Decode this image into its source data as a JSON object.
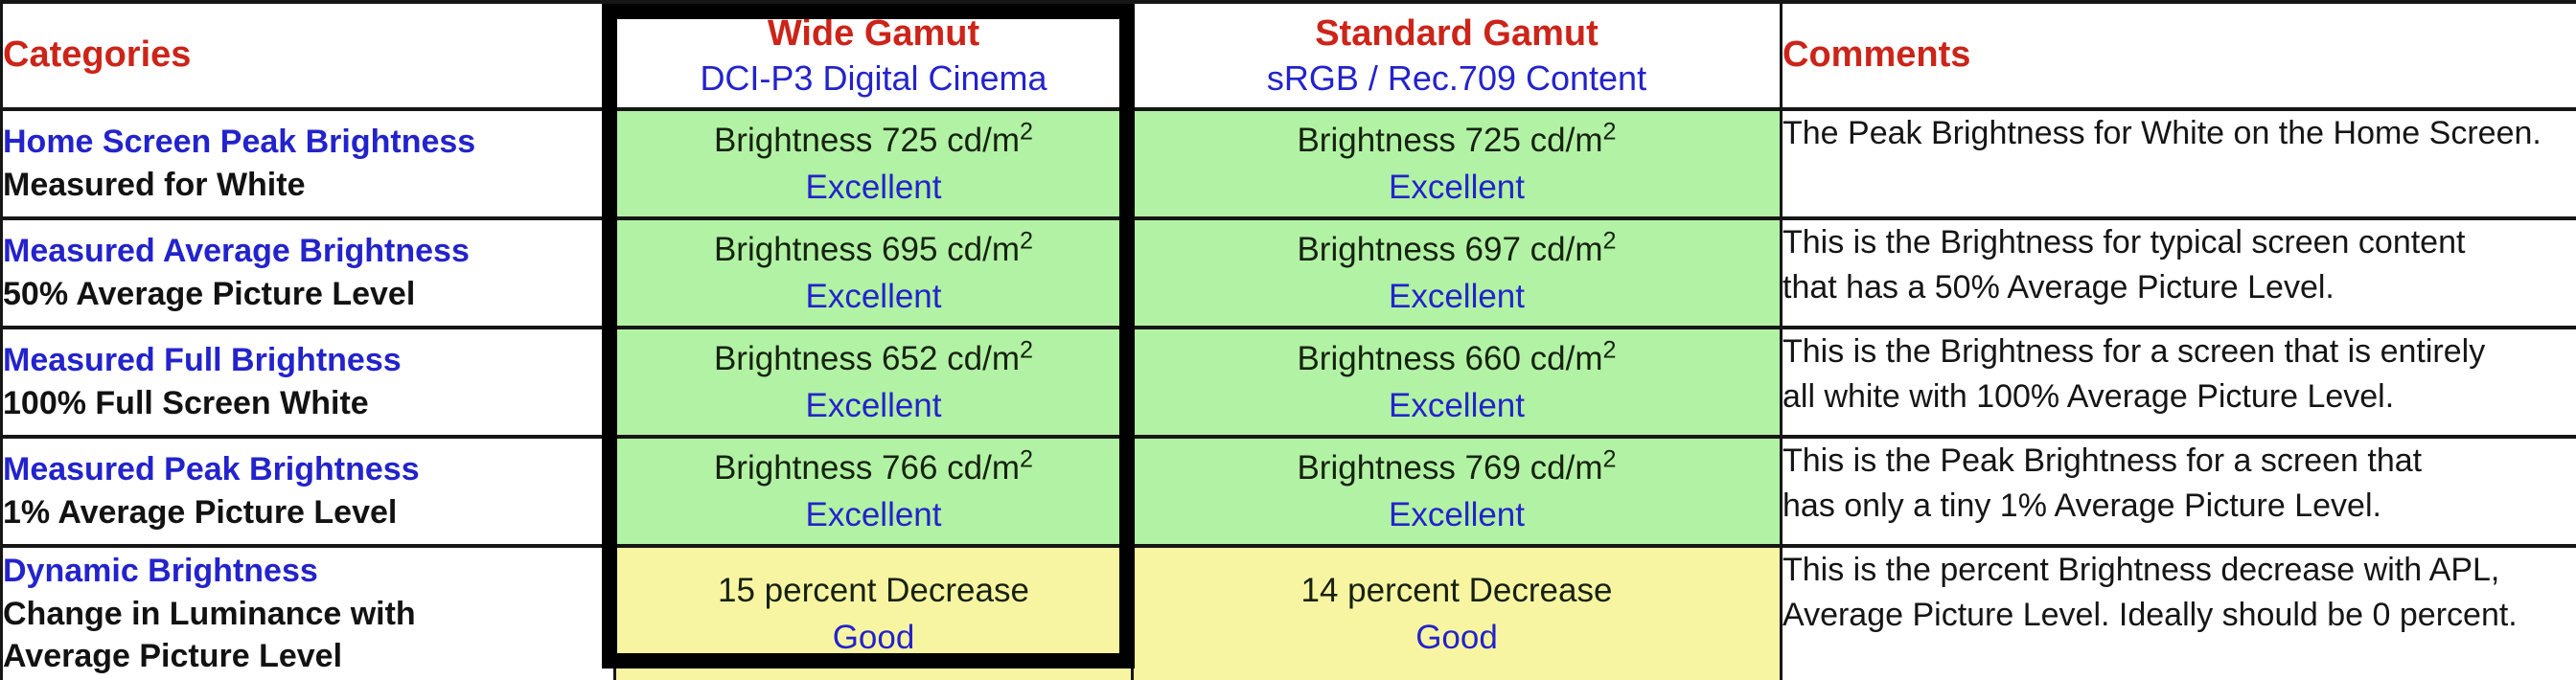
{
  "table": {
    "header": {
      "categories": "Categories",
      "wide_gamut": {
        "title": "Wide Gamut",
        "subtitle": "DCI-P3 Digital Cinema"
      },
      "standard_gamut": {
        "title": "Standard Gamut",
        "subtitle": "sRGB / Rec.709 Content"
      },
      "comments": "Comments"
    },
    "rows": [
      {
        "category_title": "Home Screen Peak Brightness",
        "category_lines": [
          "Measured for White"
        ],
        "wide": {
          "value": "Brightness 725 cd/m",
          "sup": "2",
          "rating": "Excellent",
          "status": "excellent"
        },
        "standard": {
          "value": "Brightness 725 cd/m",
          "sup": "2",
          "rating": "Excellent",
          "status": "excellent"
        },
        "comment_lines": [
          "The Peak Brightness for White on the Home Screen."
        ]
      },
      {
        "category_title": "Measured Average Brightness",
        "category_lines": [
          "50% Average Picture Level"
        ],
        "wide": {
          "value": "Brightness 695 cd/m",
          "sup": "2",
          "rating": "Excellent",
          "status": "excellent"
        },
        "standard": {
          "value": "Brightness 697 cd/m",
          "sup": "2",
          "rating": "Excellent",
          "status": "excellent"
        },
        "comment_lines": [
          "This is the Brightness for typical screen content",
          "that has a 50% Average Picture Level."
        ]
      },
      {
        "category_title": "Measured Full Brightness",
        "category_lines": [
          "100% Full Screen White"
        ],
        "wide": {
          "value": "Brightness 652 cd/m",
          "sup": "2",
          "rating": "Excellent",
          "status": "excellent"
        },
        "standard": {
          "value": "Brightness 660 cd/m",
          "sup": "2",
          "rating": "Excellent",
          "status": "excellent"
        },
        "comment_lines": [
          "This is the Brightness for a screen that is entirely",
          "all white with 100% Average Picture Level."
        ]
      },
      {
        "category_title": "Measured Peak Brightness",
        "category_lines": [
          "1% Average Picture Level"
        ],
        "wide": {
          "value": "Brightness 766 cd/m",
          "sup": "2",
          "rating": "Excellent",
          "status": "excellent"
        },
        "standard": {
          "value": "Brightness 769 cd/m",
          "sup": "2",
          "rating": "Excellent",
          "status": "excellent"
        },
        "comment_lines": [
          "This is the Peak Brightness for a screen that",
          "has only a tiny 1% Average Picture Level."
        ]
      },
      {
        "category_title": "Dynamic Brightness",
        "category_lines": [
          "Change in Luminance with",
          "Average Picture Level"
        ],
        "wide": {
          "value": "15 percent Decrease",
          "sup": "",
          "rating": "Good",
          "status": "good"
        },
        "standard": {
          "value": "14 percent Decrease",
          "sup": "",
          "rating": "Good",
          "status": "good"
        },
        "comment_lines": [
          "This is the percent Brightness decrease with APL,",
          "Average Picture Level. Ideally should be 0 percent."
        ]
      }
    ]
  },
  "highlight": {
    "highlighted_column": "wide-gamut",
    "border_color": "#000000"
  },
  "colors": {
    "excellent_bg": "#b2f2a4",
    "good_bg": "#f8f5a2",
    "heading_red": "#cc2419",
    "accent_blue": "#2323cc",
    "border": "#161616"
  }
}
